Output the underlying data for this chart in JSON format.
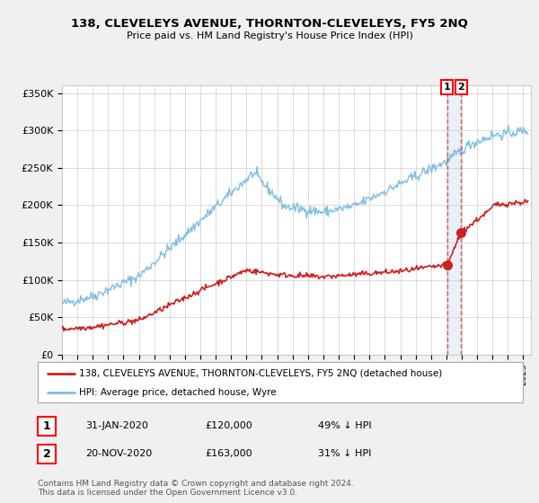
{
  "title": "138, CLEVELEYS AVENUE, THORNTON-CLEVELEYS, FY5 2NQ",
  "subtitle": "Price paid vs. HM Land Registry's House Price Index (HPI)",
  "ylabel_ticks": [
    "£0",
    "£50K",
    "£100K",
    "£150K",
    "£200K",
    "£250K",
    "£300K",
    "£350K"
  ],
  "ytick_values": [
    0,
    50000,
    100000,
    150000,
    200000,
    250000,
    300000,
    350000
  ],
  "ylim": [
    0,
    360000
  ],
  "hpi_color": "#7fbfdf",
  "price_color": "#cc2222",
  "dashed_line_color": "#dd4444",
  "shade_color": "#e8f0f8",
  "marker1_x": 2020.08,
  "marker1_y": 120000,
  "marker2_x": 2020.92,
  "marker2_y": 163000,
  "vline1_x": 2020.08,
  "vline2_x": 2020.92,
  "legend_red_label": "138, CLEVELEYS AVENUE, THORNTON-CLEVELEYS, FY5 2NQ (detached house)",
  "legend_blue_label": "HPI: Average price, detached house, Wyre",
  "table_row1": [
    "1",
    "31-JAN-2020",
    "£120,000",
    "49% ↓ HPI"
  ],
  "table_row2": [
    "2",
    "20-NOV-2020",
    "£163,000",
    "31% ↓ HPI"
  ],
  "footnote": "Contains HM Land Registry data © Crown copyright and database right 2024.\nThis data is licensed under the Open Government Licence v3.0.",
  "bg_color": "#f0f0f0",
  "plot_bg_color": "#ffffff",
  "xmin": 1995,
  "xmax": 2025.5
}
